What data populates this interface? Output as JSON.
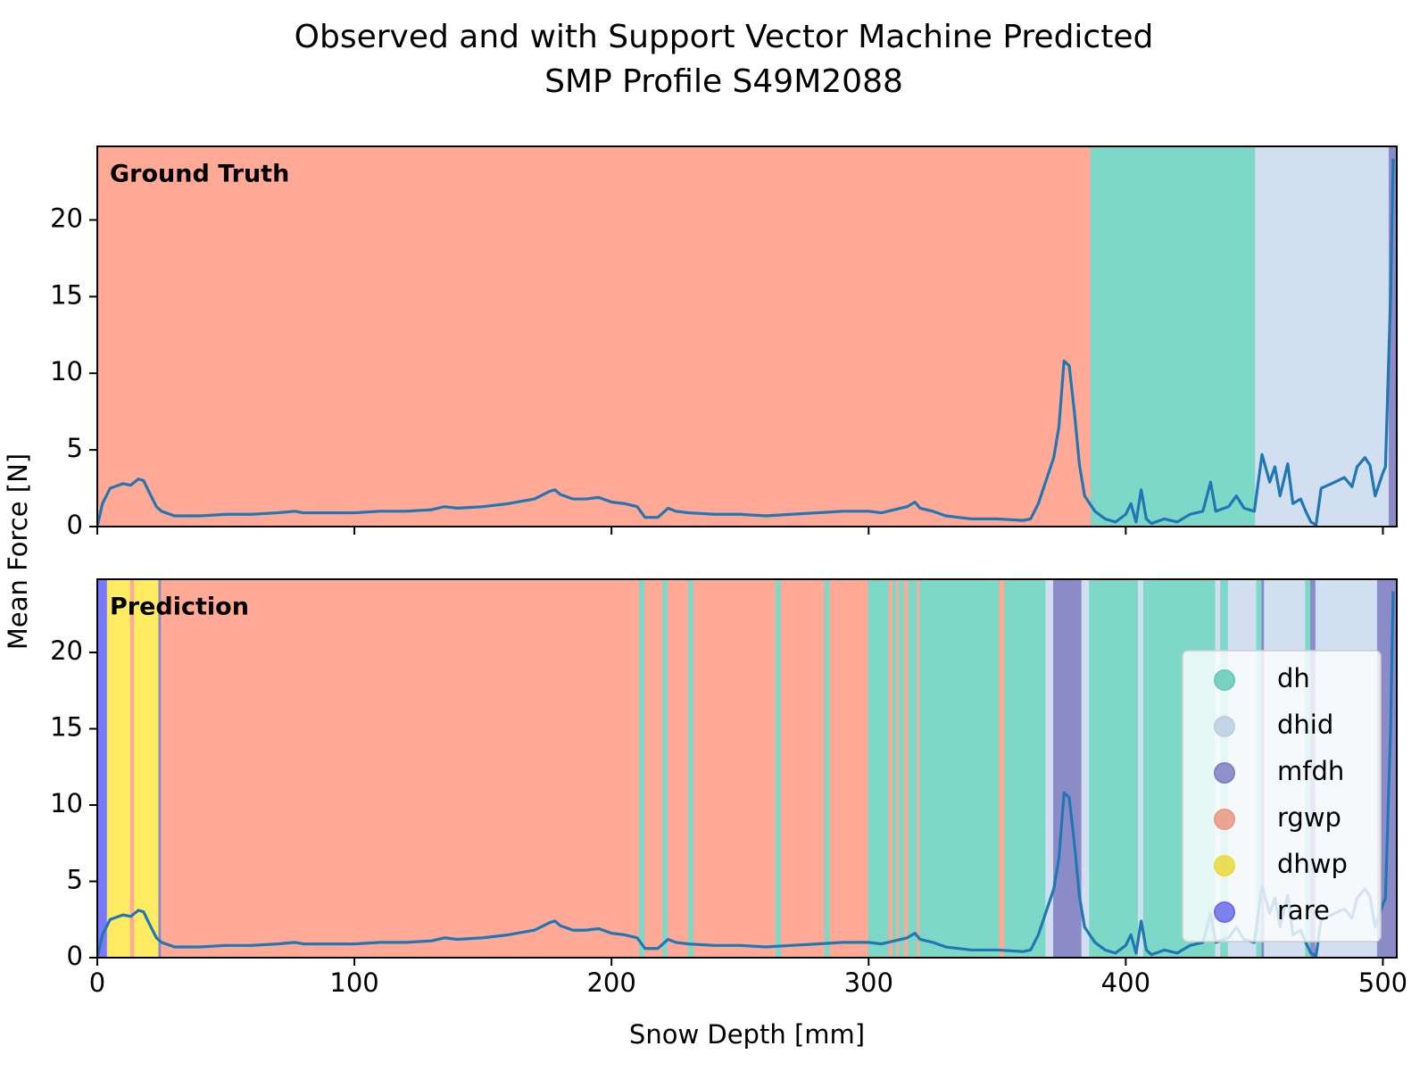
{
  "chart_data": [
    {
      "type": "line",
      "title": "Observed and with Support Vector Machine Predicted",
      "subtitle": "SMP Profile S49M2088",
      "label": "Ground Truth",
      "ylabel": "Mean Force [N]",
      "xlim": [
        0,
        505.4
      ],
      "ylim": [
        0,
        24.8
      ],
      "xticks": [
        0,
        100,
        200,
        300,
        400,
        500
      ],
      "yticks": [
        0,
        5,
        10,
        15,
        20
      ],
      "spans": [
        {
          "label": "rgwp",
          "start": 0,
          "end": 386.5
        },
        {
          "label": "dh",
          "start": 386.5,
          "end": 450.5
        },
        {
          "label": "dhid",
          "start": 450.5,
          "end": 502.5
        },
        {
          "label": "mfdh",
          "start": 502.5,
          "end": 505.4
        }
      ],
      "x": [
        0,
        2,
        5,
        10,
        13,
        16,
        18,
        20,
        23,
        25,
        30,
        40,
        50,
        60,
        70,
        77,
        80,
        90,
        100,
        110,
        120,
        130,
        135,
        140,
        150,
        160,
        170,
        176,
        178,
        180,
        185,
        190,
        195,
        200,
        205,
        210,
        213,
        218,
        222,
        225,
        230,
        240,
        250,
        260,
        270,
        280,
        290,
        300,
        305,
        310,
        315,
        318,
        320,
        325,
        330,
        340,
        350,
        360,
        363,
        366,
        368,
        370,
        372,
        374,
        376,
        378,
        380,
        382,
        384,
        386,
        388,
        392,
        396,
        400,
        402,
        404,
        406,
        408,
        410,
        415,
        420,
        425,
        430,
        433,
        435,
        440,
        443,
        446,
        450,
        453,
        456,
        458,
        460,
        463,
        465,
        468,
        470,
        472,
        474,
        476,
        480,
        485,
        488,
        490,
        493,
        495,
        497,
        500,
        501,
        503,
        504
      ],
      "series": [
        {
          "color": "#1f77b4",
          "values": [
            0,
            1.5,
            2.5,
            2.8,
            2.7,
            3.1,
            3.0,
            2.3,
            1.3,
            1.0,
            0.7,
            0.7,
            0.8,
            0.8,
            0.9,
            1.0,
            0.9,
            0.9,
            0.9,
            1.0,
            1.0,
            1.1,
            1.3,
            1.2,
            1.3,
            1.5,
            1.8,
            2.3,
            2.4,
            2.1,
            1.8,
            1.8,
            1.9,
            1.6,
            1.5,
            1.3,
            0.6,
            0.6,
            1.2,
            1.0,
            0.9,
            0.8,
            0.8,
            0.7,
            0.8,
            0.9,
            1.0,
            1.0,
            0.9,
            1.1,
            1.3,
            1.6,
            1.2,
            1.0,
            0.7,
            0.5,
            0.5,
            0.4,
            0.5,
            1.5,
            2.5,
            3.5,
            4.5,
            6.5,
            10.8,
            10.5,
            7.5,
            4.0,
            2.0,
            1.5,
            1.0,
            0.5,
            0.3,
            0.8,
            1.5,
            0.3,
            2.4,
            0.5,
            0.2,
            0.5,
            0.3,
            0.8,
            1.0,
            2.9,
            1.0,
            1.3,
            2.0,
            1.2,
            1.0,
            4.7,
            2.9,
            3.9,
            2.0,
            4.1,
            1.5,
            1.8,
            1.0,
            0.3,
            0.1,
            2.5,
            2.8,
            3.2,
            2.6,
            3.9,
            4.5,
            4.0,
            2.0,
            3.5,
            3.9,
            15,
            24
          ]
        }
      ]
    },
    {
      "type": "line",
      "label": "Prediction",
      "xlabel": "Snow Depth [mm]",
      "xlim": [
        0,
        505.4
      ],
      "ylim": [
        0,
        24.8
      ],
      "xticks": [
        0,
        100,
        200,
        300,
        400,
        500
      ],
      "yticks": [
        0,
        5,
        10,
        15,
        20
      ],
      "spans": [
        {
          "label": "rare",
          "start": 0,
          "end": 4
        },
        {
          "label": "dhwp",
          "start": 4,
          "end": 13
        },
        {
          "label": "rgwp",
          "start": 13,
          "end": 14.5
        },
        {
          "label": "dhwp",
          "start": 14.5,
          "end": 24
        },
        {
          "label": "mfdh",
          "start": 24,
          "end": 25
        },
        {
          "label": "rgwp",
          "start": 25,
          "end": 211
        },
        {
          "label": "dh",
          "start": 211,
          "end": 213
        },
        {
          "label": "rgwp",
          "start": 213,
          "end": 220
        },
        {
          "label": "dh",
          "start": 220,
          "end": 222
        },
        {
          "label": "rgwp",
          "start": 222,
          "end": 230
        },
        {
          "label": "dh",
          "start": 230,
          "end": 232
        },
        {
          "label": "rgwp",
          "start": 232,
          "end": 264
        },
        {
          "label": "dh",
          "start": 264,
          "end": 266
        },
        {
          "label": "rgwp",
          "start": 266,
          "end": 283
        },
        {
          "label": "dh",
          "start": 283,
          "end": 285
        },
        {
          "label": "rgwp",
          "start": 285,
          "end": 300
        },
        {
          "label": "dh",
          "start": 300,
          "end": 308
        },
        {
          "label": "rgwp",
          "start": 308,
          "end": 309.5
        },
        {
          "label": "dh",
          "start": 309.5,
          "end": 311
        },
        {
          "label": "rgwp",
          "start": 311,
          "end": 312
        },
        {
          "label": "dh",
          "start": 312,
          "end": 314
        },
        {
          "label": "rgwp",
          "start": 314,
          "end": 315.5
        },
        {
          "label": "dh",
          "start": 315.5,
          "end": 319
        },
        {
          "label": "rgwp",
          "start": 319,
          "end": 320
        },
        {
          "label": "dh",
          "start": 320,
          "end": 351
        },
        {
          "label": "rgwp",
          "start": 351,
          "end": 353
        },
        {
          "label": "dh",
          "start": 353,
          "end": 369
        },
        {
          "label": "dhid",
          "start": 369,
          "end": 372
        },
        {
          "label": "mfdh",
          "start": 372,
          "end": 383
        },
        {
          "label": "dhid",
          "start": 383,
          "end": 386
        },
        {
          "label": "dh",
          "start": 386,
          "end": 405
        },
        {
          "label": "dhid",
          "start": 405,
          "end": 407
        },
        {
          "label": "dh",
          "start": 407,
          "end": 435
        },
        {
          "label": "dhid",
          "start": 435,
          "end": 437
        },
        {
          "label": "dh",
          "start": 437,
          "end": 440
        },
        {
          "label": "dhid",
          "start": 440,
          "end": 451
        },
        {
          "label": "dh",
          "start": 451,
          "end": 453
        },
        {
          "label": "mfdh",
          "start": 453,
          "end": 454
        },
        {
          "label": "dhid",
          "start": 454,
          "end": 470
        },
        {
          "label": "dh",
          "start": 470,
          "end": 472
        },
        {
          "label": "mfdh",
          "start": 472,
          "end": 474
        },
        {
          "label": "dhid",
          "start": 474,
          "end": 498
        },
        {
          "label": "mfdh",
          "start": 498,
          "end": 505.4
        }
      ],
      "x": [
        0,
        2,
        5,
        10,
        13,
        16,
        18,
        20,
        23,
        25,
        30,
        40,
        50,
        60,
        70,
        77,
        80,
        90,
        100,
        110,
        120,
        130,
        135,
        140,
        150,
        160,
        170,
        176,
        178,
        180,
        185,
        190,
        195,
        200,
        205,
        210,
        213,
        218,
        222,
        225,
        230,
        240,
        250,
        260,
        270,
        280,
        290,
        300,
        305,
        310,
        315,
        318,
        320,
        325,
        330,
        340,
        350,
        360,
        363,
        366,
        368,
        370,
        372,
        374,
        376,
        378,
        380,
        382,
        384,
        386,
        388,
        392,
        396,
        400,
        402,
        404,
        406,
        408,
        410,
        415,
        420,
        425,
        430,
        433,
        435,
        440,
        443,
        446,
        450,
        453,
        456,
        458,
        460,
        463,
        465,
        468,
        470,
        472,
        474,
        476,
        480,
        485,
        488,
        490,
        493,
        495,
        497,
        500,
        501,
        503,
        504
      ],
      "series": [
        {
          "color": "#1f77b4",
          "values": [
            0,
            1.5,
            2.5,
            2.8,
            2.7,
            3.1,
            3.0,
            2.3,
            1.3,
            1.0,
            0.7,
            0.7,
            0.8,
            0.8,
            0.9,
            1.0,
            0.9,
            0.9,
            0.9,
            1.0,
            1.0,
            1.1,
            1.3,
            1.2,
            1.3,
            1.5,
            1.8,
            2.3,
            2.4,
            2.1,
            1.8,
            1.8,
            1.9,
            1.6,
            1.5,
            1.3,
            0.6,
            0.6,
            1.2,
            1.0,
            0.9,
            0.8,
            0.8,
            0.7,
            0.8,
            0.9,
            1.0,
            1.0,
            0.9,
            1.1,
            1.3,
            1.6,
            1.2,
            1.0,
            0.7,
            0.5,
            0.5,
            0.4,
            0.5,
            1.5,
            2.5,
            3.5,
            4.5,
            6.5,
            10.8,
            10.5,
            7.5,
            4.0,
            2.0,
            1.5,
            1.0,
            0.5,
            0.3,
            0.8,
            1.5,
            0.3,
            2.4,
            0.5,
            0.2,
            0.5,
            0.3,
            0.8,
            1.0,
            2.9,
            1.0,
            1.3,
            2.0,
            1.2,
            1.0,
            4.7,
            2.9,
            3.9,
            2.0,
            4.1,
            1.5,
            1.8,
            1.0,
            0.3,
            0.1,
            2.5,
            2.8,
            3.2,
            2.6,
            3.9,
            4.5,
            4.0,
            2.0,
            3.5,
            3.9,
            15,
            24
          ]
        }
      ],
      "legend": {
        "loc": "lower right",
        "entries": [
          {
            "name": "dh",
            "color": "#8dd3c7"
          },
          {
            "name": "dhid",
            "color": "#d4dfec"
          },
          {
            "name": "mfdh",
            "color": "#8c8cba"
          },
          {
            "name": "rgwp",
            "color": "#fdae9f"
          },
          {
            "name": "dhwp",
            "color": "#ffea80"
          },
          {
            "name": "rare",
            "color": "#7b7bff"
          }
        ]
      }
    }
  ]
}
